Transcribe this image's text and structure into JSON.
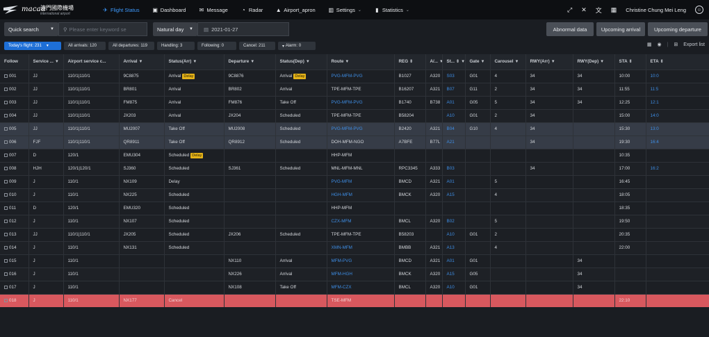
{
  "brand": {
    "name_latin": "macau",
    "name_cn": "澳門國際機場",
    "subtitle": "international airport"
  },
  "nav": [
    {
      "label": "Flight Status",
      "icon": "plane-icon",
      "active": true,
      "caret": false
    },
    {
      "label": "Dashboard",
      "icon": "dashboard-icon",
      "active": false,
      "caret": false
    },
    {
      "label": "Message",
      "icon": "message-icon",
      "active": false,
      "caret": false
    },
    {
      "label": "Radar",
      "icon": "radar-icon",
      "active": false,
      "caret": false
    },
    {
      "label": "Airport_apron",
      "icon": "apron-icon",
      "active": false,
      "caret": false
    },
    {
      "label": "Settings",
      "icon": "settings-icon",
      "active": false,
      "caret": true
    },
    {
      "label": "Statistics",
      "icon": "statistics-icon",
      "active": false,
      "caret": true
    }
  ],
  "user": {
    "name": "Christine Chung Mei Leng"
  },
  "filters": {
    "quick_search": "Quick search",
    "search_placeholder": "Please enter keyword se",
    "day_mode": "Natural day",
    "date": "2021-01-27",
    "btn_abnormal": "Abnormal data",
    "btn_arrival": "Upcoming arrival",
    "btn_departure": "Upcoming departure"
  },
  "chips": {
    "today": "Today's flight: 231",
    "arrivals": "All arrivals: 120",
    "departures": "All departures: 119",
    "handling": "Handling: 3",
    "following": "Following: 0",
    "cancel": "Cancel: 211",
    "alarm": "Alarm: 0",
    "export": "Export list"
  },
  "columns": [
    "Follow",
    "Service ...",
    "Airport service c...",
    "Arrival",
    "Status(Arr)",
    "Departure",
    "Status(Dep)",
    "Route",
    "REG",
    "A/...",
    "St...",
    "Gate",
    "Carousel",
    "RWY(Arr)",
    "RWY(Dep)",
    "STA",
    "ETA"
  ],
  "rows": [
    {
      "follow": "001",
      "svc": "JJ",
      "asc": "110/1|110/1",
      "arr": "9C8875",
      "sarr": "Arrival",
      "sarr_tag": "Delay",
      "dep": "9C8876",
      "sdep": "Arrival",
      "sdep_tag": "Delay",
      "route": "PVG-MFM-PVG",
      "route_link": true,
      "reg": "B1027",
      "ac": "A320",
      "st": "S03",
      "gate": "G01",
      "car": "4",
      "rwa": "34",
      "rwd": "34",
      "sta": "10:00",
      "eta": "10:0",
      "hl": false,
      "red": false
    },
    {
      "follow": "002",
      "svc": "JJ",
      "asc": "110/1|110/1",
      "arr": "BR801",
      "sarr": "Arrival",
      "sarr_tag": "",
      "dep": "BR802",
      "sdep": "Arrival",
      "sdep_tag": "",
      "route": "TPE-MFM-TPE",
      "route_link": false,
      "reg": "B16207",
      "ac": "A321",
      "st": "B07",
      "gate": "G11",
      "car": "2",
      "rwa": "34",
      "rwd": "34",
      "sta": "11:55",
      "eta": "11:5",
      "hl": false,
      "red": false
    },
    {
      "follow": "003",
      "svc": "JJ",
      "asc": "110/1|110/1",
      "arr": "FM875",
      "sarr": "Arrival",
      "sarr_tag": "",
      "dep": "FM876",
      "sdep": "Take Off",
      "sdep_tag": "",
      "route": "PVG-MFM-PVG",
      "route_link": true,
      "reg": "B1740",
      "ac": "B738",
      "st": "A01",
      "gate": "G05",
      "car": "5",
      "rwa": "34",
      "rwd": "34",
      "sta": "12:25",
      "eta": "12:1",
      "hl": false,
      "red": false
    },
    {
      "follow": "004",
      "svc": "JJ",
      "asc": "110/1|110/1",
      "arr": "JX203",
      "sarr": "Arrival",
      "sarr_tag": "",
      "dep": "JX204",
      "sdep": "Scheduled",
      "sdep_tag": "",
      "route": "TPE-MFM-TPE",
      "route_link": false,
      "reg": "B58204",
      "ac": "",
      "st": "A10",
      "gate": "G01",
      "car": "2",
      "rwa": "34",
      "rwd": "",
      "sta": "15:00",
      "eta": "14:0",
      "hl": false,
      "red": false
    },
    {
      "follow": "005",
      "svc": "JJ",
      "asc": "110/1|110/1",
      "arr": "MU2007",
      "sarr": "Take Off",
      "sarr_tag": "",
      "dep": "MU2008",
      "sdep": "Scheduled",
      "sdep_tag": "",
      "route": "PVG-MFM-PVG",
      "route_link": true,
      "reg": "B2420",
      "ac": "A321",
      "st": "B04",
      "gate": "G10",
      "car": "4",
      "rwa": "34",
      "rwd": "",
      "sta": "15:30",
      "eta": "13:0",
      "hl": true,
      "red": false
    },
    {
      "follow": "006",
      "svc": "FJF",
      "asc": "110/1|110/1",
      "arr": "QR8911",
      "sarr": "Take Off",
      "sarr_tag": "",
      "dep": "QR8912",
      "sdep": "Scheduled",
      "sdep_tag": "",
      "route": "DOH-MFM-NGO",
      "route_link": false,
      "reg": "A7BFE",
      "ac": "B77L",
      "st": "A21",
      "gate": "",
      "car": "",
      "rwa": "34",
      "rwd": "",
      "sta": "19:30",
      "eta": "16:4",
      "hl": true,
      "red": false
    },
    {
      "follow": "007",
      "svc": "D",
      "asc": "120/1",
      "arr": "EMU304",
      "sarr": "Scheduled",
      "sarr_tag": "Delay",
      "dep": "",
      "sdep": "",
      "sdep_tag": "",
      "route": "HHP-MFM",
      "route_link": false,
      "reg": "",
      "ac": "",
      "st": "",
      "gate": "",
      "car": "",
      "rwa": "",
      "rwd": "",
      "sta": "10:35",
      "eta": "",
      "hl": false,
      "red": false
    },
    {
      "follow": "008",
      "svc": "HJH",
      "asc": "120/1|120/1",
      "arr": "SJ360",
      "sarr": "Scheduled",
      "sarr_tag": "",
      "dep": "SJ361",
      "sdep": "Scheduled",
      "sdep_tag": "",
      "route": "MNL-MFM-MNL",
      "route_link": false,
      "reg": "RPC3345",
      "ac": "A333",
      "st": "B03",
      "gate": "",
      "car": "",
      "rwa": "34",
      "rwd": "",
      "sta": "17:00",
      "eta": "16:2",
      "hl": false,
      "red": false
    },
    {
      "follow": "009",
      "svc": "J",
      "asc": "110/1",
      "arr": "NX109",
      "sarr": "Delay",
      "sarr_tag": "",
      "dep": "",
      "sdep": "",
      "sdep_tag": "",
      "route": "PVG-MFM",
      "route_link": true,
      "reg": "BMCD",
      "ac": "A321",
      "st": "A01",
      "gate": "",
      "car": "5",
      "rwa": "",
      "rwd": "",
      "sta": "16:45",
      "eta": "",
      "hl": false,
      "red": false
    },
    {
      "follow": "010",
      "svc": "J",
      "asc": "110/1",
      "arr": "NX225",
      "sarr": "Scheduled",
      "sarr_tag": "",
      "dep": "",
      "sdep": "",
      "sdep_tag": "",
      "route": "HGH-MFM",
      "route_link": true,
      "reg": "BMCK",
      "ac": "A320",
      "st": "A15",
      "gate": "",
      "car": "4",
      "rwa": "",
      "rwd": "",
      "sta": "18:05",
      "eta": "",
      "hl": false,
      "red": false
    },
    {
      "follow": "011",
      "svc": "D",
      "asc": "120/1",
      "arr": "EMU320",
      "sarr": "Scheduled",
      "sarr_tag": "",
      "dep": "",
      "sdep": "",
      "sdep_tag": "",
      "route": "HHP-MFM",
      "route_link": false,
      "reg": "",
      "ac": "",
      "st": "",
      "gate": "",
      "car": "",
      "rwa": "",
      "rwd": "",
      "sta": "18:35",
      "eta": "",
      "hl": false,
      "red": false
    },
    {
      "follow": "012",
      "svc": "J",
      "asc": "110/1",
      "arr": "NX107",
      "sarr": "Scheduled",
      "sarr_tag": "",
      "dep": "",
      "sdep": "",
      "sdep_tag": "",
      "route": "CZX-MFM",
      "route_link": true,
      "reg": "BMCL",
      "ac": "A320",
      "st": "B02",
      "gate": "",
      "car": "5",
      "rwa": "",
      "rwd": "",
      "sta": "19:50",
      "eta": "",
      "hl": false,
      "red": false
    },
    {
      "follow": "013",
      "svc": "JJ",
      "asc": "110/1|110/1",
      "arr": "JX205",
      "sarr": "Scheduled",
      "sarr_tag": "",
      "dep": "JX206",
      "sdep": "Scheduled",
      "sdep_tag": "",
      "route": "TPE-MFM-TPE",
      "route_link": false,
      "reg": "B58203",
      "ac": "",
      "st": "A10",
      "gate": "G01",
      "car": "2",
      "rwa": "",
      "rwd": "",
      "sta": "20:35",
      "eta": "",
      "hl": false,
      "red": false
    },
    {
      "follow": "014",
      "svc": "J",
      "asc": "110/1",
      "arr": "NX131",
      "sarr": "Scheduled",
      "sarr_tag": "",
      "dep": "",
      "sdep": "",
      "sdep_tag": "",
      "route": "XMN-MFM",
      "route_link": true,
      "reg": "BMBB",
      "ac": "A321",
      "st": "A13",
      "gate": "",
      "car": "4",
      "rwa": "",
      "rwd": "",
      "sta": "22:00",
      "eta": "",
      "hl": false,
      "red": false
    },
    {
      "follow": "015",
      "svc": "J",
      "asc": "110/1",
      "arr": "",
      "sarr": "",
      "sarr_tag": "",
      "dep": "NX110",
      "sdep": "Arrival",
      "sdep_tag": "",
      "route": "MFM-PVG",
      "route_link": true,
      "reg": "BMCD",
      "ac": "A321",
      "st": "A01",
      "gate": "G01",
      "car": "",
      "rwa": "",
      "rwd": "34",
      "sta": "",
      "eta": "",
      "hl": false,
      "red": false
    },
    {
      "follow": "016",
      "svc": "J",
      "asc": "110/1",
      "arr": "",
      "sarr": "",
      "sarr_tag": "",
      "dep": "NX226",
      "sdep": "Arrival",
      "sdep_tag": "",
      "route": "MFM-HGH",
      "route_link": true,
      "reg": "BMCK",
      "ac": "A320",
      "st": "A15",
      "gate": "G05",
      "car": "",
      "rwa": "",
      "rwd": "34",
      "sta": "",
      "eta": "",
      "hl": false,
      "red": false
    },
    {
      "follow": "017",
      "svc": "J",
      "asc": "110/1",
      "arr": "",
      "sarr": "",
      "sarr_tag": "",
      "dep": "NX108",
      "sdep": "Take Off",
      "sdep_tag": "",
      "route": "MFM-CZX",
      "route_link": true,
      "reg": "BMCL",
      "ac": "A320",
      "st": "A10",
      "gate": "G01",
      "car": "",
      "rwa": "",
      "rwd": "34",
      "sta": "",
      "eta": "",
      "hl": false,
      "red": false
    },
    {
      "follow": "018",
      "svc": "J",
      "asc": "110/1",
      "arr": "NX177",
      "sarr": "Cancel",
      "sarr_tag": "",
      "dep": "",
      "sdep": "",
      "sdep_tag": "",
      "route": "TSE-MFM",
      "route_link": false,
      "reg": "",
      "ac": "",
      "st": "",
      "gate": "",
      "car": "",
      "rwa": "",
      "rwd": "",
      "sta": "22:10",
      "eta": "",
      "hl": false,
      "red": true
    }
  ]
}
